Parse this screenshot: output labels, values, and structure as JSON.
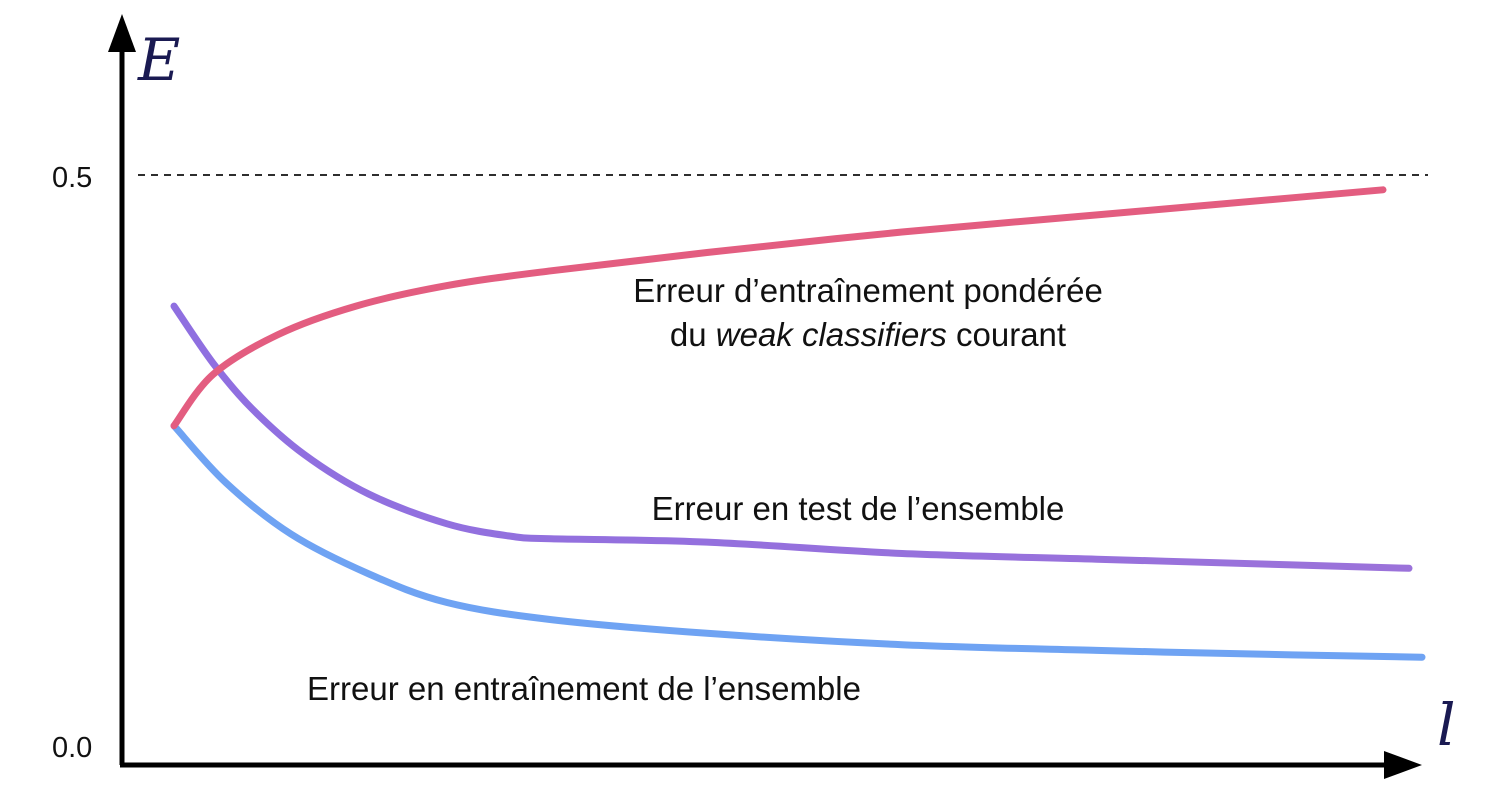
{
  "chart_data": {
    "type": "line",
    "xlabel": "l",
    "ylabel": "E",
    "ylim": [
      0.0,
      0.62
    ],
    "xlim": [
      0,
      1
    ],
    "y_ticks": [
      "0.0",
      "0.5"
    ],
    "reference_line": {
      "y": 0.5,
      "style": "dashed",
      "color": "#111111"
    },
    "grid": false,
    "legend": "none",
    "series": [
      {
        "name": "Erreur d’entraînement pondérée du weak classifiers courant",
        "color": "#e35d80",
        "x": [
          0.04,
          0.07,
          0.12,
          0.18,
          0.25,
          0.33,
          0.45,
          0.6,
          0.75,
          0.9,
          0.97
        ],
        "y": [
          0.28,
          0.325,
          0.36,
          0.385,
          0.403,
          0.416,
          0.432,
          0.45,
          0.465,
          0.48,
          0.487
        ]
      },
      {
        "name": "Erreur en test de l’ensemble",
        "color": "#9b6fdc",
        "x": [
          0.04,
          0.07,
          0.1,
          0.14,
          0.19,
          0.25,
          0.3,
          0.33,
          0.45,
          0.6,
          0.75,
          0.9,
          0.99
        ],
        "y": [
          0.385,
          0.335,
          0.295,
          0.255,
          0.22,
          0.194,
          0.183,
          0.181,
          0.178,
          0.168,
          0.163,
          0.158,
          0.155
        ]
      },
      {
        "name": "Erreur en entraînement de l’ensemble",
        "color": "#6fa3f3",
        "x": [
          0.04,
          0.08,
          0.13,
          0.19,
          0.25,
          0.33,
          0.45,
          0.6,
          0.75,
          0.9,
          1.0
        ],
        "y": [
          0.28,
          0.23,
          0.185,
          0.15,
          0.125,
          0.11,
          0.098,
          0.088,
          0.083,
          0.079,
          0.077
        ]
      }
    ],
    "annotations": {
      "weighted_train_line1": "Erreur d’entraînement pondérée",
      "weighted_train_line2_pre": "du ",
      "weighted_train_line2_em": "weak classifiers",
      "weighted_train_line2_post": " courant",
      "ensemble_test": "Erreur en test de l’ensemble",
      "ensemble_train": "Erreur en entraînement de l’ensemble"
    }
  }
}
